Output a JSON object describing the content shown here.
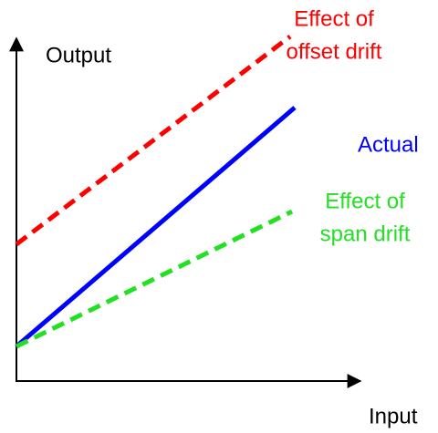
{
  "axes": {
    "y_label": "Output",
    "x_label": "Input"
  },
  "lines": [
    {
      "label": [
        "Effect of",
        "offset drift"
      ],
      "color": "#ff0000"
    },
    {
      "label": [
        "Actual"
      ],
      "color": "#0000ff"
    },
    {
      "label": [
        "Effect of",
        "span drift"
      ],
      "color": "#22e022"
    }
  ]
}
